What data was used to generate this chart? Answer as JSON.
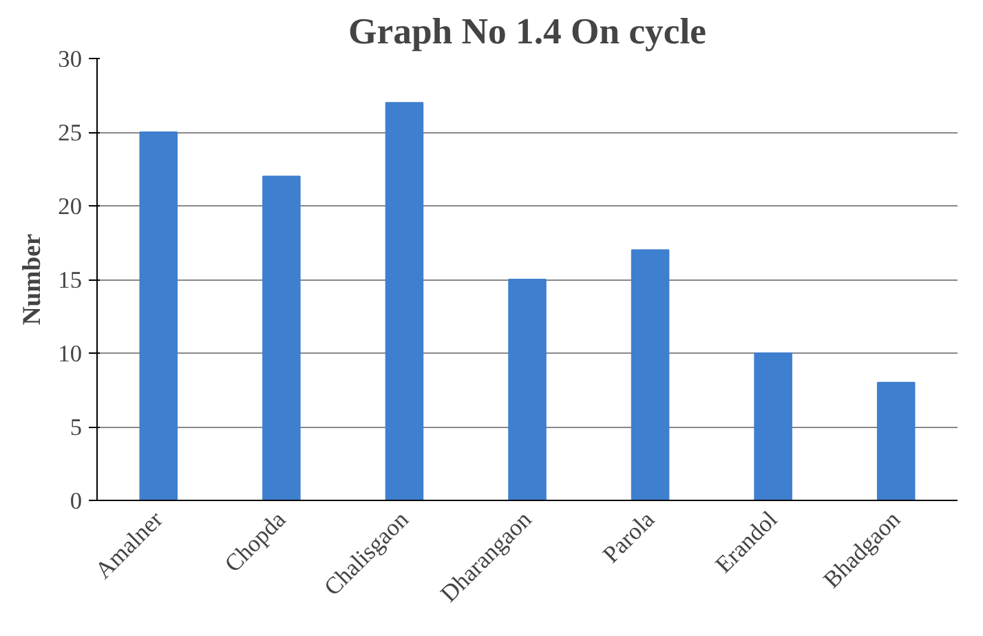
{
  "chart_data": {
    "type": "bar",
    "title": "Graph No 1.4 On cycle",
    "ylabel": "Number",
    "categories": [
      "Amalner",
      "Chopda",
      "Chalisgaon",
      "Dharangaon",
      "Parola",
      "Erandol",
      "Bhadgaon"
    ],
    "values": [
      25,
      22,
      27,
      15,
      17,
      10,
      8
    ],
    "color": "#3f7fcf",
    "ylim": [
      0,
      30
    ],
    "yticks": [
      0,
      5,
      10,
      15,
      20,
      25,
      30
    ],
    "grid": "y"
  }
}
